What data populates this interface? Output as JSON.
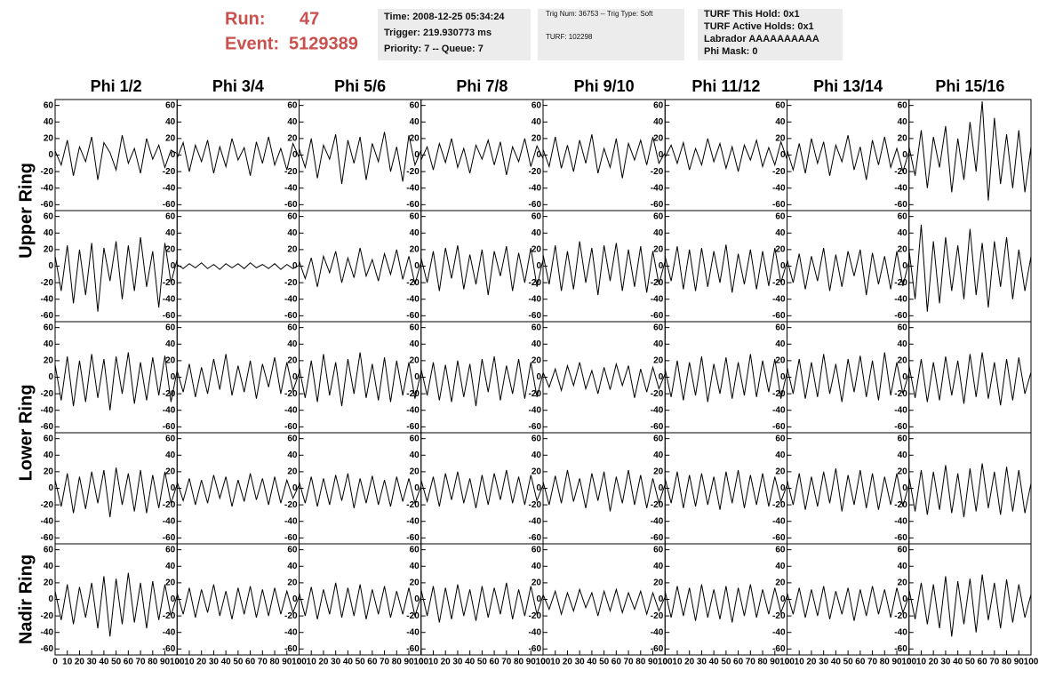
{
  "header": {
    "run_label": "Run:",
    "run": "47",
    "event_label": "Event:",
    "event": "5129389",
    "info_boxes": [
      [
        "Time: 2008-12-25 05:34:24",
        "Trigger: 219.930773 ms",
        "Priority: 7 -- Queue: 7"
      ],
      [
        "Trig Num: 36753 -- Trig Type: Soft",
        "TURF: 102298"
      ],
      [
        "TURF This Hold: 0x1",
        "TURF Active Holds: 0x1",
        "Labrador AAAAAAAAAA",
        "Phi Mask: 0"
      ]
    ]
  },
  "chart_data": {
    "type": "line",
    "color": "#000000",
    "columns": [
      "Phi 1/2",
      "Phi 3/4",
      "Phi 5/6",
      "Phi 7/8",
      "Phi 9/10",
      "Phi 11/12",
      "Phi 13/14",
      "Phi 15/16"
    ],
    "row_labels": [
      "Upper Ring",
      "Lower Ring",
      "Nadir Ring"
    ],
    "x": [
      0,
      5,
      10,
      15,
      20,
      25,
      30,
      35,
      40,
      45,
      50,
      55,
      60,
      65,
      70,
      75,
      80,
      85,
      90,
      95,
      100
    ],
    "xlim": [
      0,
      100
    ],
    "xticks": [
      0,
      10,
      20,
      30,
      40,
      50,
      60,
      70,
      80,
      90,
      100
    ],
    "ylim": [
      -65,
      65
    ],
    "yticks": [
      -60,
      -40,
      -20,
      0,
      20,
      40,
      60
    ],
    "panels": [
      [
        [
          5,
          -12,
          18,
          -25,
          10,
          -8,
          22,
          -30,
          15,
          3,
          -18,
          24,
          -10,
          8,
          -22,
          20,
          -5,
          12,
          -15,
          6,
          2
        ],
        [
          -4,
          15,
          -20,
          12,
          -8,
          18,
          -22,
          10,
          -14,
          20,
          -6,
          9,
          -25,
          16,
          -10,
          22,
          -12,
          8,
          -18,
          14,
          -3
        ],
        [
          8,
          -15,
          20,
          -28,
          12,
          -5,
          25,
          -35,
          18,
          -10,
          22,
          -30,
          14,
          -8,
          28,
          -20,
          10,
          -32,
          24,
          -12,
          6
        ],
        [
          -6,
          10,
          -18,
          14,
          -9,
          20,
          -15,
          8,
          -22,
          12,
          -5,
          18,
          -12,
          16,
          -24,
          10,
          -8,
          20,
          -14,
          11,
          -4
        ],
        [
          7,
          -14,
          22,
          -16,
          12,
          -20,
          18,
          -10,
          25,
          -22,
          8,
          -15,
          20,
          -28,
          14,
          -6,
          18,
          -12,
          22,
          -10,
          3
        ],
        [
          -3,
          12,
          -10,
          15,
          -18,
          8,
          -12,
          20,
          -8,
          14,
          -16,
          10,
          -20,
          12,
          -6,
          18,
          -14,
          9,
          -12,
          16,
          -5
        ],
        [
          6,
          -18,
          14,
          -22,
          20,
          -10,
          16,
          -25,
          12,
          -8,
          24,
          -18,
          10,
          -30,
          18,
          -12,
          22,
          -15,
          8,
          -20,
          4
        ],
        [
          10,
          -25,
          30,
          -40,
          22,
          -15,
          35,
          -45,
          20,
          -30,
          40,
          -20,
          65,
          -55,
          45,
          -35,
          25,
          -40,
          30,
          -45,
          10
        ]
      ],
      [
        [
          12,
          -30,
          25,
          -45,
          20,
          -35,
          28,
          -55,
          22,
          -18,
          30,
          -40,
          25,
          -30,
          35,
          -25,
          18,
          -50,
          28,
          -20,
          8
        ],
        [
          2,
          -3,
          3,
          -2,
          4,
          -3,
          2,
          -4,
          3,
          -2,
          3,
          -3,
          4,
          -2,
          2,
          -3,
          3,
          -4,
          2,
          -3,
          1
        ],
        [
          6,
          -15,
          10,
          -25,
          12,
          -8,
          18,
          -20,
          10,
          -14,
          22,
          -12,
          8,
          -18,
          15,
          -10,
          20,
          -16,
          12,
          -22,
          5
        ],
        [
          10,
          -20,
          18,
          -30,
          22,
          -15,
          25,
          -28,
          14,
          -22,
          20,
          -35,
          18,
          -12,
          24,
          -30,
          16,
          -20,
          22,
          -25,
          8
        ],
        [
          14,
          -22,
          25,
          -30,
          18,
          -28,
          30,
          -20,
          22,
          -35,
          25,
          -18,
          28,
          -30,
          20,
          -25,
          24,
          -32,
          18,
          -22,
          6
        ],
        [
          12,
          -18,
          24,
          -28,
          20,
          -30,
          22,
          -25,
          18,
          -20,
          26,
          -32,
          15,
          -22,
          20,
          -28,
          18,
          -24,
          22,
          -20,
          5
        ],
        [
          8,
          -20,
          15,
          -28,
          12,
          -18,
          22,
          -30,
          14,
          -25,
          18,
          -12,
          20,
          -35,
          16,
          -22,
          12,
          -28,
          18,
          -24,
          6
        ],
        [
          20,
          -40,
          50,
          -55,
          30,
          -45,
          35,
          -30,
          25,
          -40,
          45,
          -35,
          28,
          -50,
          30,
          -25,
          35,
          -40,
          20,
          -30,
          12
        ]
      ],
      [
        [
          15,
          -28,
          25,
          -35,
          20,
          -30,
          28,
          -25,
          22,
          -40,
          25,
          -20,
          30,
          -32,
          18,
          -28,
          24,
          -22,
          26,
          -30,
          8
        ],
        [
          8,
          -18,
          16,
          -24,
          12,
          -20,
          22,
          -15,
          28,
          -22,
          14,
          -18,
          20,
          -26,
          16,
          -12,
          24,
          -20,
          18,
          -16,
          5
        ],
        [
          12,
          -25,
          20,
          -30,
          28,
          -22,
          18,
          -35,
          22,
          -20,
          30,
          -25,
          16,
          -28,
          24,
          -30,
          20,
          -22,
          18,
          -26,
          6
        ],
        [
          10,
          -22,
          18,
          -28,
          15,
          -30,
          20,
          -24,
          16,
          -35,
          22,
          -18,
          25,
          -28,
          14,
          -20,
          22,
          -26,
          18,
          -24,
          5
        ],
        [
          6,
          -12,
          10,
          -16,
          14,
          -10,
          18,
          -14,
          8,
          -20,
          12,
          -15,
          16,
          -10,
          14,
          -25,
          10,
          -18,
          12,
          -14,
          4
        ],
        [
          10,
          -24,
          20,
          -28,
          18,
          -22,
          25,
          -30,
          16,
          -20,
          24,
          -26,
          18,
          -22,
          28,
          -24,
          20,
          -18,
          22,
          -26,
          6
        ],
        [
          12,
          -20,
          22,
          -26,
          18,
          -24,
          28,
          -20,
          16,
          -30,
          22,
          -18,
          26,
          -24,
          20,
          -28,
          30,
          -22,
          18,
          -20,
          5
        ],
        [
          14,
          -25,
          22,
          -30,
          18,
          -28,
          25,
          -22,
          20,
          -32,
          28,
          -24,
          30,
          -26,
          18,
          -34,
          22,
          -28,
          24,
          -20,
          6
        ]
      ],
      [
        [
          10,
          -22,
          18,
          -30,
          14,
          -25,
          20,
          -18,
          22,
          -35,
          25,
          -20,
          18,
          -28,
          22,
          -30,
          16,
          -24,
          20,
          -18,
          5
        ],
        [
          8,
          -15,
          12,
          -20,
          10,
          -18,
          16,
          -12,
          14,
          -22,
          10,
          -16,
          18,
          -14,
          12,
          -20,
          14,
          -18,
          10,
          -12,
          4
        ],
        [
          8,
          -18,
          14,
          -22,
          12,
          -20,
          16,
          -15,
          18,
          -24,
          12,
          -18,
          15,
          -20,
          10,
          -22,
          14,
          -16,
          12,
          -18,
          3
        ],
        [
          10,
          -16,
          14,
          -22,
          18,
          -14,
          20,
          -18,
          12,
          -24,
          16,
          -20,
          18,
          -14,
          22,
          -18,
          14,
          -20,
          16,
          -15,
          4
        ],
        [
          8,
          -20,
          15,
          -18,
          22,
          -16,
          12,
          -24,
          18,
          -15,
          20,
          -28,
          14,
          -18,
          22,
          -20,
          16,
          -24,
          12,
          -18,
          5
        ],
        [
          12,
          -18,
          20,
          -24,
          16,
          -22,
          18,
          -20,
          14,
          -26,
          20,
          -18,
          22,
          -24,
          16,
          -20,
          18,
          -22,
          14,
          -16,
          4
        ],
        [
          10,
          -20,
          18,
          -26,
          14,
          -22,
          20,
          -18,
          24,
          -28,
          16,
          -20,
          22,
          -24,
          18,
          -26,
          14,
          -20,
          18,
          -22,
          5
        ],
        [
          14,
          -28,
          22,
          -32,
          20,
          -26,
          28,
          -30,
          18,
          -35,
          24,
          -28,
          30,
          -24,
          20,
          -32,
          26,
          -28,
          22,
          -30,
          6
        ]
      ],
      [
        [
          10,
          -25,
          18,
          -30,
          15,
          -22,
          20,
          -35,
          28,
          -45,
          25,
          -30,
          32,
          -28,
          20,
          -35,
          22,
          -25,
          18,
          -20,
          5
        ],
        [
          8,
          -18,
          14,
          -22,
          12,
          -16,
          18,
          -20,
          10,
          -24,
          14,
          -18,
          16,
          -22,
          12,
          -20,
          14,
          -18,
          10,
          -16,
          4
        ],
        [
          8,
          -20,
          15,
          -24,
          12,
          -18,
          20,
          -22,
          14,
          -20,
          18,
          -24,
          12,
          -18,
          16,
          -22,
          10,
          -18,
          14,
          -20,
          4
        ],
        [
          12,
          -20,
          16,
          -28,
          14,
          -24,
          18,
          -20,
          12,
          -26,
          16,
          -22,
          14,
          -18,
          20,
          -24,
          12,
          -20,
          16,
          -18,
          5
        ],
        [
          6,
          -12,
          10,
          -18,
          8,
          -14,
          12,
          -10,
          8,
          -20,
          10,
          -14,
          12,
          -16,
          8,
          -12,
          10,
          -18,
          8,
          -14,
          3
        ],
        [
          10,
          -22,
          16,
          -20,
          14,
          -26,
          18,
          -22,
          12,
          -24,
          16,
          -28,
          14,
          -20,
          18,
          -22,
          12,
          -18,
          14,
          -16,
          4
        ],
        [
          8,
          -18,
          14,
          -22,
          12,
          -20,
          16,
          -24,
          10,
          -18,
          14,
          -26,
          12,
          -20,
          16,
          -18,
          12,
          -22,
          14,
          -16,
          4
        ],
        [
          12,
          -24,
          20,
          -30,
          18,
          -35,
          28,
          -45,
          22,
          -30,
          25,
          -40,
          30,
          -25,
          20,
          -35,
          24,
          -28,
          18,
          -22,
          6
        ]
      ]
    ]
  }
}
